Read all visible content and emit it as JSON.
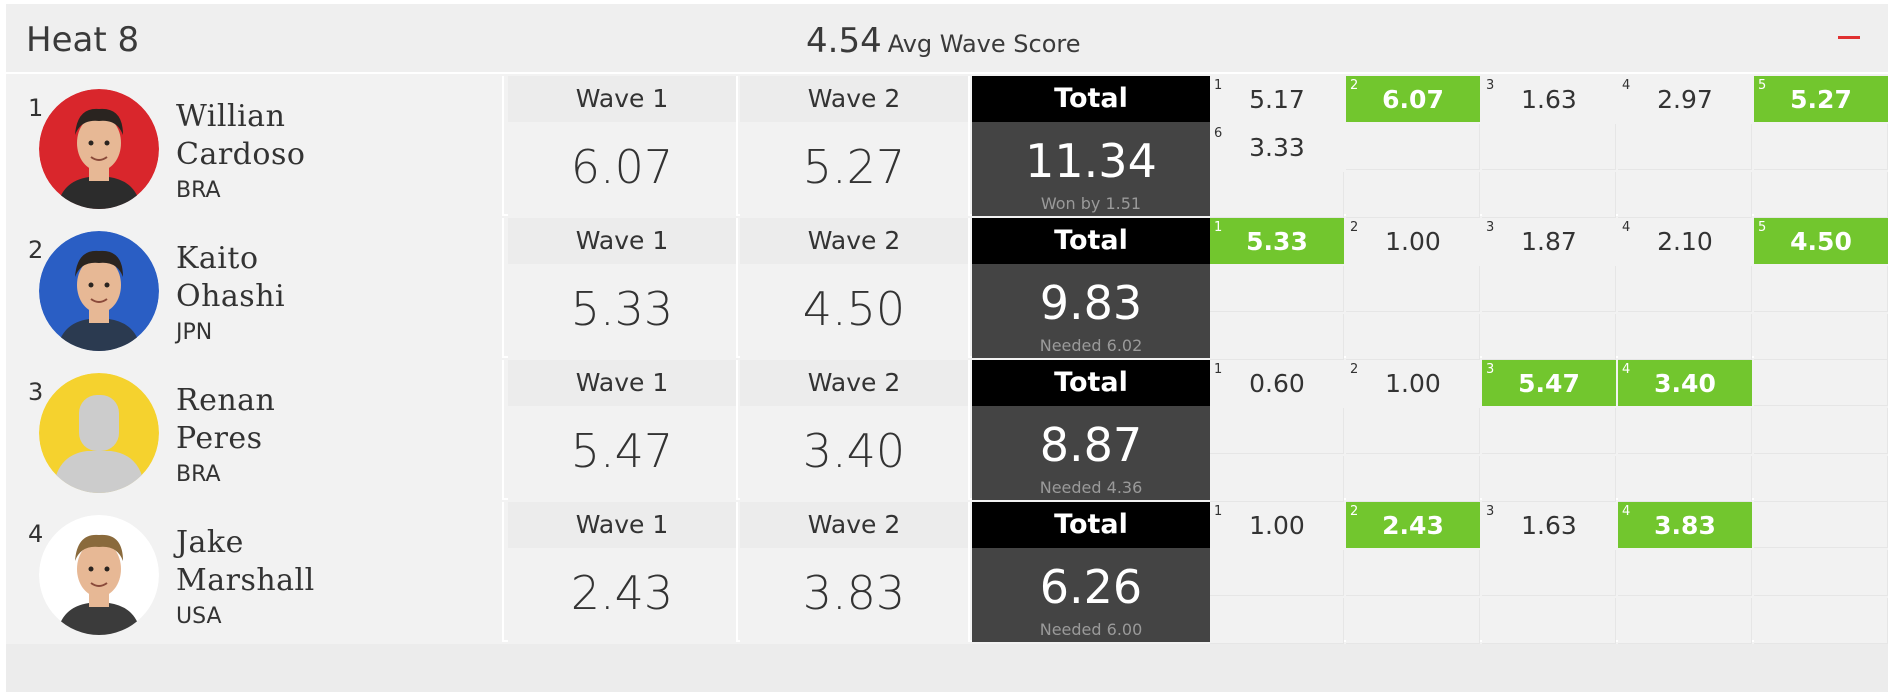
{
  "heat": {
    "title": "Heat 8",
    "avg_value": "4.54",
    "avg_label": "Avg Wave Score"
  },
  "colors": {
    "best_wave": "#72c62e",
    "collapse_icon": "#e03131",
    "total_head": "#000000",
    "total_body": "#444444"
  },
  "athletes": [
    {
      "rank": "1",
      "first": "Willian",
      "last": "Cardoso",
      "country": "BRA",
      "avatar_icon": "athlete-photo-icon",
      "avatar_bg": "#d9262c",
      "wave1_label": "Wave 1",
      "wave1": "6.07",
      "wave2_label": "Wave 2",
      "wave2": "5.27",
      "total_label": "Total",
      "total": "11.34",
      "note": "Won by 1.51",
      "waves": [
        {
          "n": "1",
          "s": "5.17",
          "best": false
        },
        {
          "n": "2",
          "s": "6.07",
          "best": true
        },
        {
          "n": "3",
          "s": "1.63",
          "best": false
        },
        {
          "n": "4",
          "s": "2.97",
          "best": false
        },
        {
          "n": "5",
          "s": "5.27",
          "best": true
        },
        {
          "n": "6",
          "s": "3.33",
          "best": false
        }
      ]
    },
    {
      "rank": "2",
      "first": "Kaito",
      "last": "Ohashi",
      "country": "JPN",
      "avatar_icon": "athlete-photo-icon",
      "avatar_bg": "#2a5ec4",
      "wave1_label": "Wave 1",
      "wave1": "5.33",
      "wave2_label": "Wave 2",
      "wave2": "4.50",
      "total_label": "Total",
      "total": "9.83",
      "note": "Needed 6.02",
      "waves": [
        {
          "n": "1",
          "s": "5.33",
          "best": true
        },
        {
          "n": "2",
          "s": "1.00",
          "best": false
        },
        {
          "n": "3",
          "s": "1.87",
          "best": false
        },
        {
          "n": "4",
          "s": "2.10",
          "best": false
        },
        {
          "n": "5",
          "s": "4.50",
          "best": true
        }
      ]
    },
    {
      "rank": "3",
      "first": "Renan",
      "last": "Peres",
      "country": "BRA",
      "avatar_icon": "placeholder-person-icon",
      "avatar_bg": "#f5d22e",
      "wave1_label": "Wave 1",
      "wave1": "5.47",
      "wave2_label": "Wave 2",
      "wave2": "3.40",
      "total_label": "Total",
      "total": "8.87",
      "note": "Needed 4.36",
      "waves": [
        {
          "n": "1",
          "s": "0.60",
          "best": false
        },
        {
          "n": "2",
          "s": "1.00",
          "best": false
        },
        {
          "n": "3",
          "s": "5.47",
          "best": true
        },
        {
          "n": "4",
          "s": "3.40",
          "best": true
        }
      ]
    },
    {
      "rank": "4",
      "first": "Jake",
      "last": "Marshall",
      "country": "USA",
      "avatar_icon": "athlete-photo-icon",
      "avatar_bg": "#ffffff",
      "wave1_label": "Wave 1",
      "wave1": "2.43",
      "wave2_label": "Wave 2",
      "wave2": "3.83",
      "total_label": "Total",
      "total": "6.26",
      "note": "Needed 6.00",
      "waves": [
        {
          "n": "1",
          "s": "1.00",
          "best": false
        },
        {
          "n": "2",
          "s": "2.43",
          "best": true
        },
        {
          "n": "3",
          "s": "1.63",
          "best": false
        },
        {
          "n": "4",
          "s": "3.83",
          "best": true
        }
      ]
    }
  ]
}
